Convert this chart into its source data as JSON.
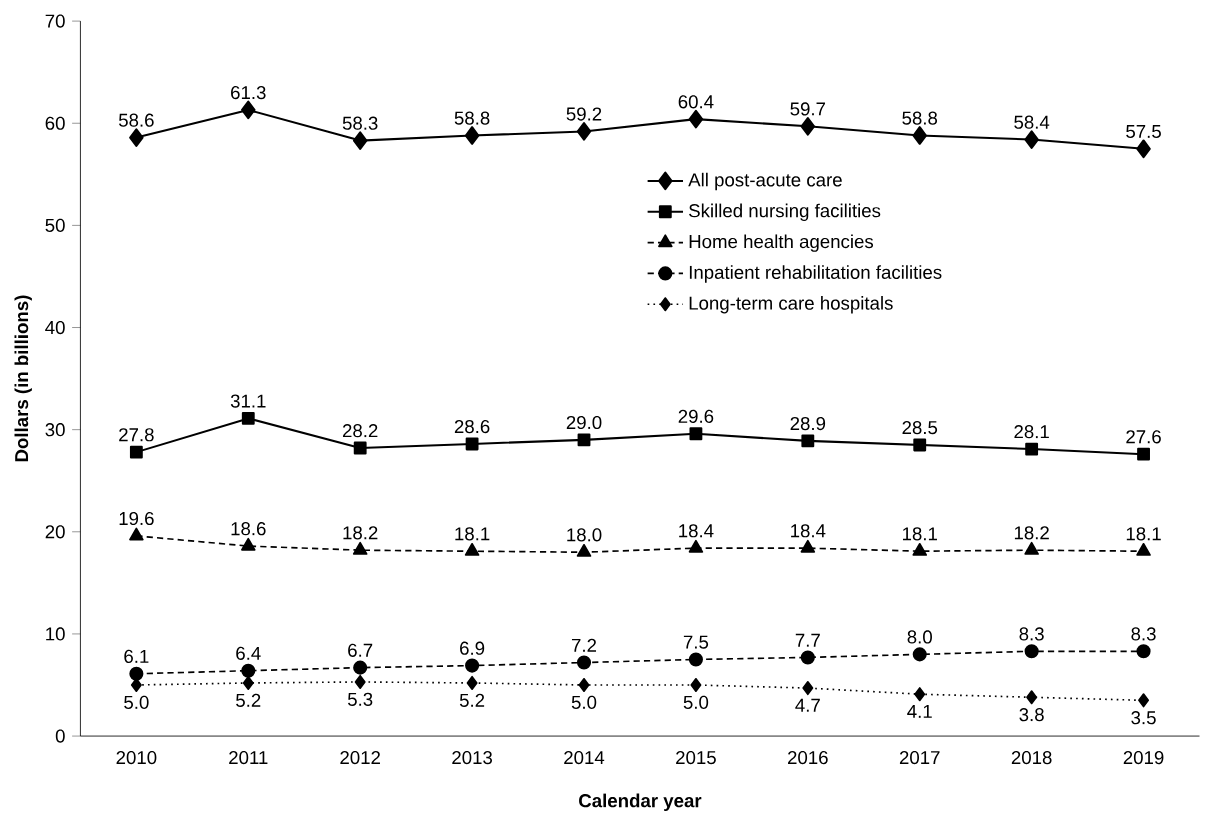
{
  "chart_data": {
    "type": "line",
    "xlabel": "Calendar year",
    "ylabel": "Dollars (in billions)",
    "categories": [
      "2010",
      "2011",
      "2012",
      "2013",
      "2014",
      "2015",
      "2016",
      "2017",
      "2018",
      "2019"
    ],
    "ylim": [
      0,
      70
    ],
    "yticks": [
      0,
      10,
      20,
      30,
      40,
      50,
      60,
      70
    ],
    "grid": false,
    "legend": "right",
    "series": [
      {
        "name": "All post-acute care",
        "color": "#000000",
        "marker": "diamond",
        "line_style": "solid",
        "values": [
          58.6,
          61.3,
          58.3,
          58.8,
          59.2,
          60.4,
          59.7,
          58.8,
          58.4,
          57.5
        ],
        "value_labels": [
          "58.6",
          "61.3",
          "58.3",
          "58.8",
          "59.2",
          "60.4",
          "59.7",
          "58.8",
          "58.4",
          "57.5"
        ]
      },
      {
        "name": "Skilled nursing facilities",
        "color": "#000000",
        "marker": "square",
        "line_style": "solid",
        "values": [
          27.8,
          31.1,
          28.2,
          28.6,
          29.0,
          29.6,
          28.9,
          28.5,
          28.1,
          27.6
        ],
        "value_labels": [
          "27.8",
          "31.1",
          "28.2",
          "28.6",
          "29.0",
          "29.6",
          "28.9",
          "28.5",
          "28.1",
          "27.6"
        ]
      },
      {
        "name": "Home health agencies",
        "color": "#000000",
        "marker": "triangle",
        "line_style": "dashed",
        "values": [
          19.6,
          18.6,
          18.2,
          18.1,
          18.0,
          18.4,
          18.4,
          18.1,
          18.2,
          18.1
        ],
        "value_labels": [
          "19.6",
          "18.6",
          "18.2",
          "18.1",
          "18.0",
          "18.4",
          "18.4",
          "18.1",
          "18.2",
          "18.1"
        ]
      },
      {
        "name": "Inpatient rehabilitation facilities",
        "color": "#000000",
        "marker": "circle",
        "line_style": "dashed",
        "values": [
          6.1,
          6.4,
          6.7,
          6.9,
          7.2,
          7.5,
          7.7,
          8.0,
          8.3,
          8.3
        ],
        "value_labels": [
          "6.1",
          "6.4",
          "6.7",
          "6.9",
          "7.2",
          "7.5",
          "7.7",
          "8.0",
          "8.3",
          "8.3"
        ]
      },
      {
        "name": "Long-term care hospitals",
        "color": "#000000",
        "marker": "diamond",
        "line_style": "dotted",
        "values": [
          5.0,
          5.2,
          5.3,
          5.2,
          5.0,
          5.0,
          4.7,
          4.1,
          3.8,
          3.5
        ],
        "value_labels": [
          "5.0",
          "5.2",
          "5.3",
          "5.2",
          "5.0",
          "5.0",
          "4.7",
          "4.1",
          "3.8",
          "3.5"
        ]
      }
    ]
  }
}
